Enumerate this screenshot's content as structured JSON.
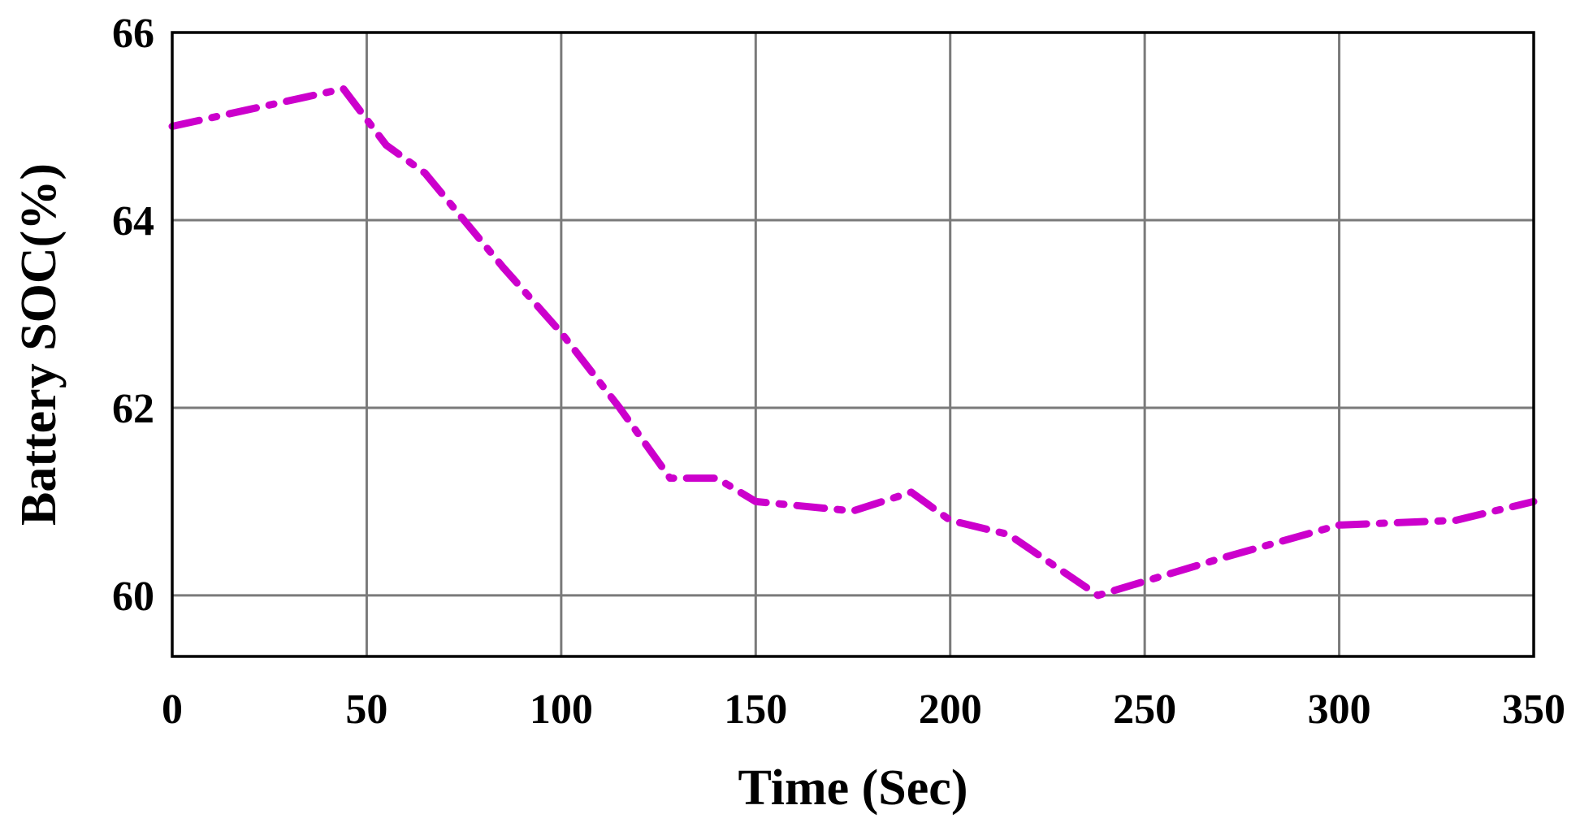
{
  "chart_data": {
    "type": "line",
    "title": "",
    "xlabel": "Time (Sec)",
    "ylabel": "Battery SOC(%)",
    "xlim": [
      0,
      350
    ],
    "ylim": [
      59.35,
      66
    ],
    "x_ticks": [
      0,
      50,
      100,
      150,
      200,
      250,
      300,
      350
    ],
    "y_ticks": [
      60,
      62,
      64,
      66
    ],
    "x_tick_labels": [
      "0",
      "50",
      "100",
      "150",
      "200",
      "250",
      "300",
      "350"
    ],
    "y_tick_labels": [
      "60",
      "62",
      "64",
      "66"
    ],
    "grid": true,
    "legend": "none",
    "line_style": "dash-dot",
    "series": [
      {
        "color": "#cc00cc",
        "x": [
          0,
          44,
          55,
          65,
          85,
          100,
          115,
          128,
          140,
          150,
          175,
          190,
          200,
          215,
          238,
          250,
          270,
          300,
          330,
          350
        ],
        "y": [
          65.0,
          65.4,
          64.8,
          64.5,
          63.5,
          62.8,
          62.0,
          61.25,
          61.25,
          61.0,
          60.9,
          61.1,
          60.8,
          60.65,
          60.0,
          60.15,
          60.4,
          60.75,
          60.8,
          61.0
        ]
      }
    ]
  }
}
